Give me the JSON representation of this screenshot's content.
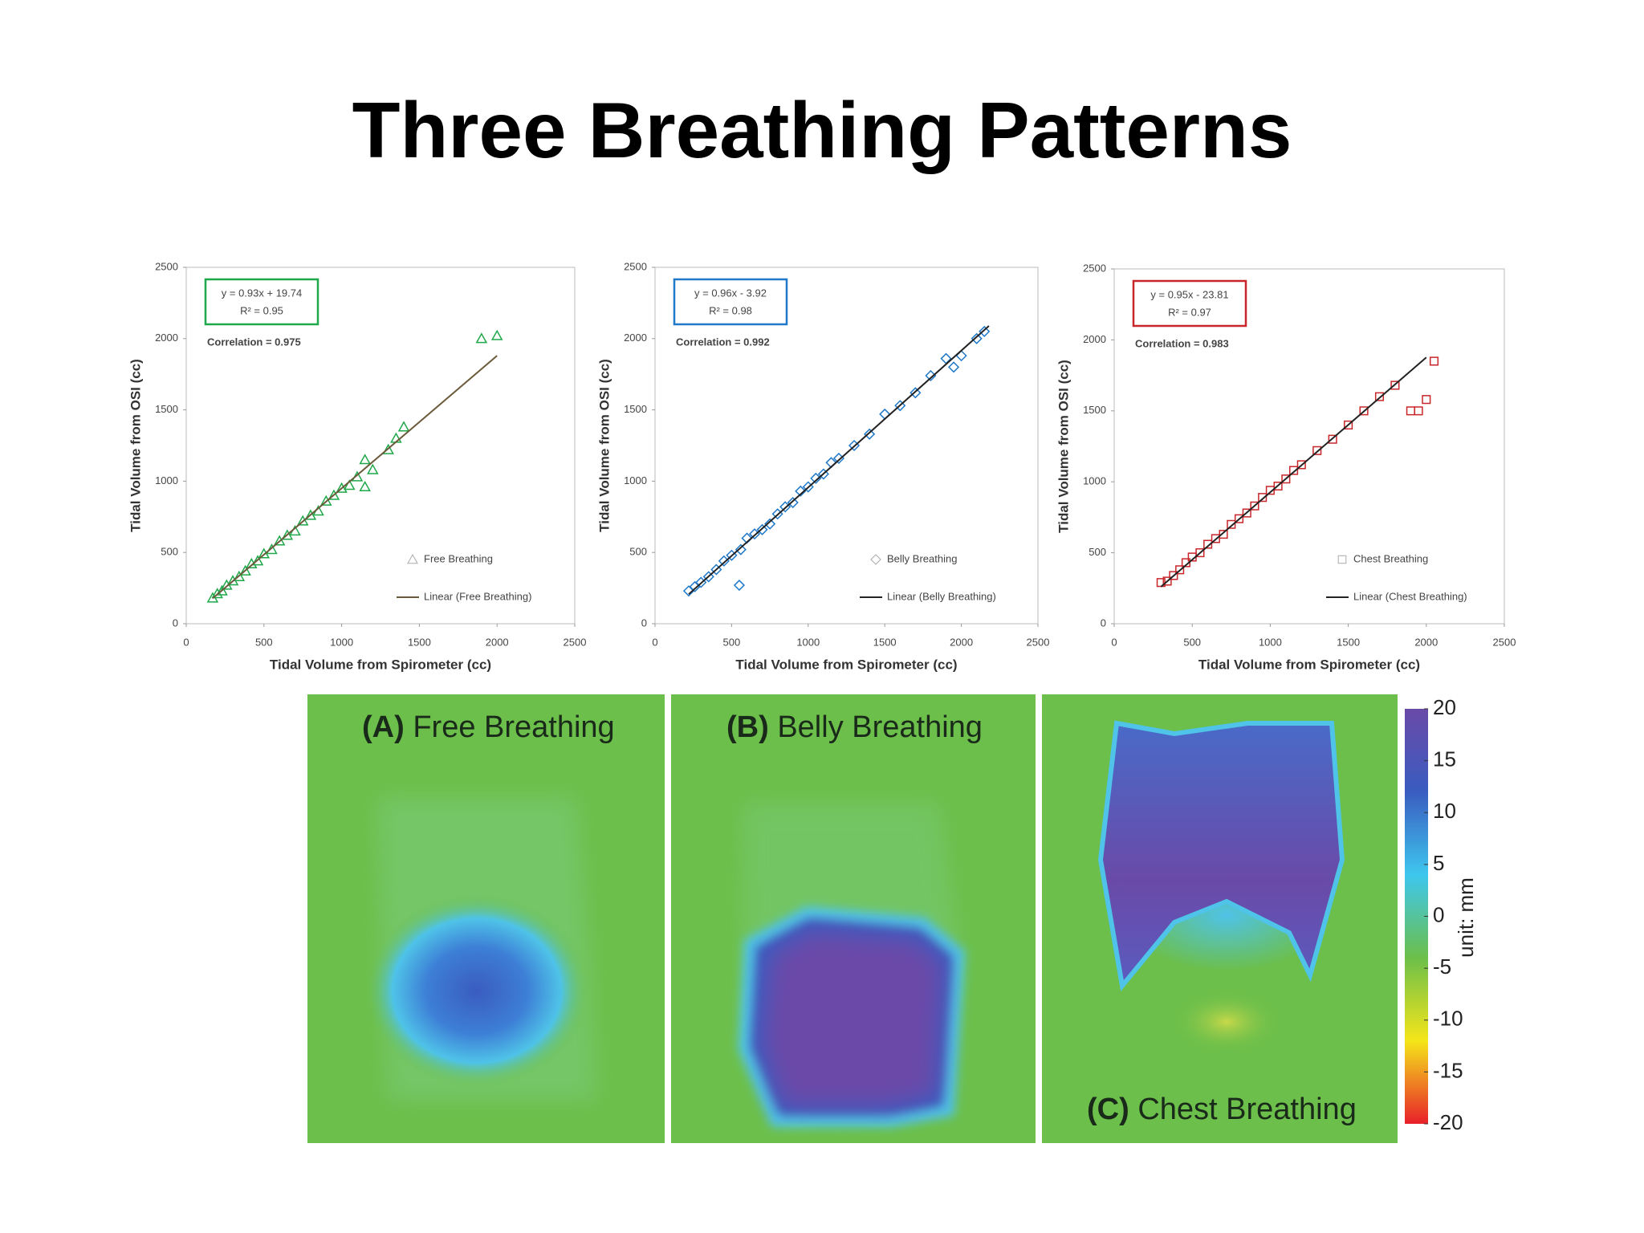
{
  "title": "Three Breathing Patterns",
  "chart_data": [
    {
      "type": "scatter",
      "xlabel": "Tidal Volume from Spirometer (cc)",
      "ylabel": "Tidal Volume from OSI (cc)",
      "xlim": [
        0,
        2500
      ],
      "xticks": [
        0,
        500,
        1000,
        1500,
        2000,
        2500
      ],
      "ylim": [
        0,
        2500
      ],
      "yticks": [
        0,
        500,
        1000,
        1500,
        2000,
        2500
      ],
      "equation": "y = 0.93x + 19.74",
      "r_squared": "R² = 0.95",
      "correlation": "Correlation = 0.975",
      "legend": "lower right",
      "series": [
        {
          "name": "Free Breathing",
          "color": "#1fa84a",
          "marker": "triangle",
          "x": [
            170,
            200,
            230,
            260,
            300,
            340,
            380,
            420,
            460,
            500,
            550,
            600,
            650,
            700,
            750,
            800,
            850,
            900,
            950,
            1000,
            1050,
            1100,
            1150,
            1200,
            1300,
            1350,
            1400,
            1900,
            2000,
            1150
          ],
          "y": [
            180,
            210,
            230,
            270,
            300,
            330,
            370,
            420,
            440,
            490,
            520,
            580,
            620,
            650,
            720,
            760,
            790,
            860,
            900,
            950,
            970,
            1030,
            1150,
            1080,
            1220,
            1300,
            1380,
            2000,
            2020,
            960
          ]
        },
        {
          "name": "Linear (Free Breathing)",
          "color": "#6b5a3a",
          "marker": "line",
          "x": [
            170,
            2000
          ],
          "y": [
            177.84,
            1879.74
          ]
        }
      ]
    },
    {
      "type": "scatter",
      "xlabel": "Tidal Volume from Spirometer (cc)",
      "ylabel": "Tidal Volume from OSI (cc)",
      "xlim": [
        0,
        2500
      ],
      "xticks": [
        0,
        500,
        1000,
        1500,
        2000,
        2500
      ],
      "ylim": [
        0,
        2500
      ],
      "yticks": [
        0,
        500,
        1000,
        1500,
        2000,
        2500
      ],
      "equation": "y = 0.96x - 3.92",
      "r_squared": "R² = 0.98",
      "correlation": "Correlation = 0.992",
      "legend": "lower right",
      "series": [
        {
          "name": "Belly Breathing",
          "color": "#1f78c8",
          "marker": "diamond",
          "x": [
            220,
            260,
            300,
            350,
            400,
            450,
            500,
            560,
            600,
            650,
            700,
            750,
            800,
            850,
            900,
            950,
            1000,
            1050,
            1100,
            1150,
            1200,
            1300,
            1400,
            1500,
            1600,
            1700,
            1800,
            1900,
            2000,
            2100,
            2150,
            550,
            1950
          ],
          "y": [
            230,
            260,
            290,
            330,
            380,
            440,
            480,
            520,
            600,
            630,
            660,
            700,
            770,
            820,
            850,
            930,
            960,
            1020,
            1050,
            1130,
            1160,
            1250,
            1330,
            1470,
            1530,
            1620,
            1740,
            1860,
            1880,
            2000,
            2050,
            270,
            1800
          ]
        },
        {
          "name": "Linear (Belly Breathing)",
          "color": "#222222",
          "marker": "line",
          "x": [
            220,
            2180
          ],
          "y": [
            207.28,
            2088.88
          ]
        }
      ]
    },
    {
      "type": "scatter",
      "xlabel": "Tidal Volume from Spirometer (cc)",
      "ylabel": "Tidal Volume from OSI (cc)",
      "xlim": [
        0,
        2500
      ],
      "xticks": [
        0,
        500,
        1000,
        1500,
        2000,
        2500
      ],
      "ylim": [
        0,
        2500
      ],
      "yticks": [
        0,
        500,
        1000,
        1500,
        2000,
        2500
      ],
      "equation": "y = 0.95x - 23.81",
      "r_squared": "R² = 0.97",
      "correlation": "Correlation = 0.983",
      "legend": "lower right",
      "series": [
        {
          "name": "Chest Breathing",
          "color": "#c8262a",
          "marker": "square",
          "x": [
            300,
            340,
            380,
            420,
            460,
            500,
            550,
            600,
            650,
            700,
            750,
            800,
            850,
            900,
            950,
            1000,
            1050,
            1100,
            1150,
            1200,
            1300,
            1400,
            1500,
            1600,
            1700,
            1800,
            1900,
            2000,
            2050,
            1950
          ],
          "y": [
            290,
            300,
            340,
            380,
            430,
            470,
            500,
            560,
            600,
            630,
            700,
            740,
            780,
            830,
            890,
            940,
            970,
            1020,
            1080,
            1120,
            1220,
            1300,
            1400,
            1500,
            1600,
            1680,
            1500,
            1580,
            1850,
            1500
          ]
        },
        {
          "name": "Linear (Chest Breathing)",
          "color": "#222222",
          "marker": "line",
          "x": [
            300,
            2000
          ],
          "y": [
            261.19,
            1876.19
          ]
        }
      ]
    },
    {
      "type": "colorbar",
      "label": "unit: mm",
      "ylim": [
        -20,
        20
      ],
      "yticks": [
        20,
        15,
        10,
        5,
        0,
        -5,
        -10,
        -15,
        -20
      ],
      "colors": [
        "#e8202a",
        "#f5e61a",
        "#6cbf4a",
        "#3ec7ee",
        "#3a5cc0",
        "#6a4aa8"
      ],
      "panels": [
        {
          "letter": "(A)",
          "label": "Free Breathing"
        },
        {
          "letter": "(B)",
          "label": "Belly Breathing"
        },
        {
          "letter": "(C)",
          "label": "Chest Breathing"
        }
      ]
    }
  ]
}
